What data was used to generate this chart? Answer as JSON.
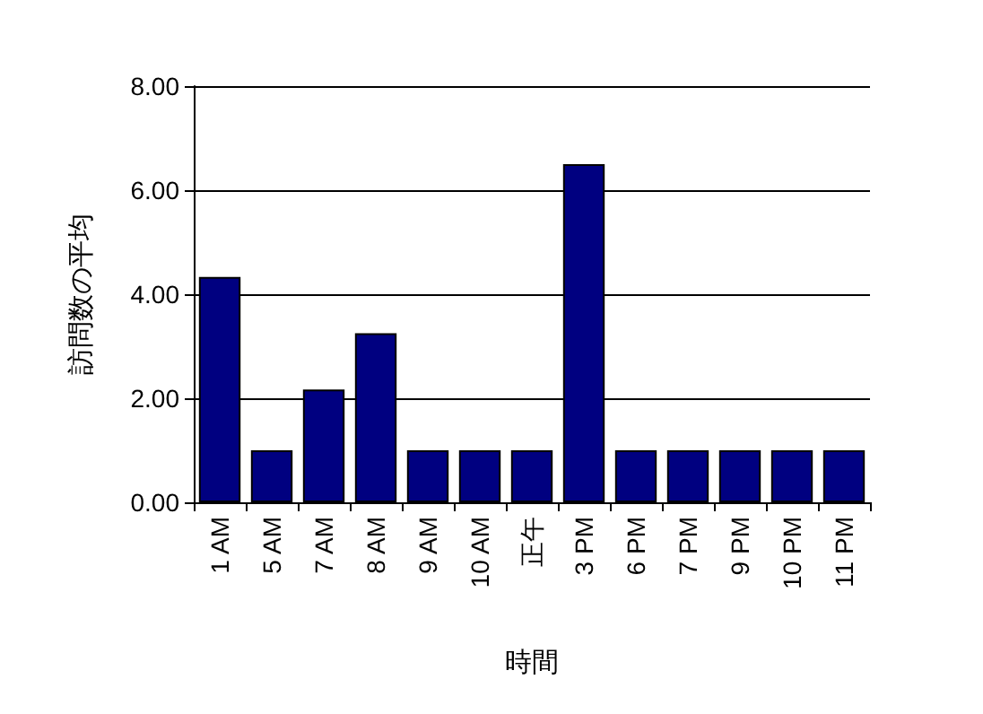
{
  "chart_data": {
    "type": "bar",
    "xlabel": "時間",
    "ylabel": "訪問数の平均",
    "categories": [
      "1 AM",
      "5 AM",
      "7 AM",
      "8 AM",
      "9 AM",
      "10 AM",
      "正午",
      "3 PM",
      "6 PM",
      "7 PM",
      "9 PM",
      "10 PM",
      "11 PM"
    ],
    "values": [
      4.33,
      1,
      2.17,
      3.25,
      1,
      1,
      1,
      6.5,
      1,
      1,
      1,
      1,
      1
    ],
    "color": "#000080",
    "ylim": [
      0,
      8
    ],
    "yticks": [
      {
        "value": 0,
        "label": "0.00"
      },
      {
        "value": 2,
        "label": "2.00"
      },
      {
        "value": 4,
        "label": "4.00"
      },
      {
        "value": 6,
        "label": "6.00"
      },
      {
        "value": 8,
        "label": "8.00"
      }
    ],
    "grid": "y"
  }
}
